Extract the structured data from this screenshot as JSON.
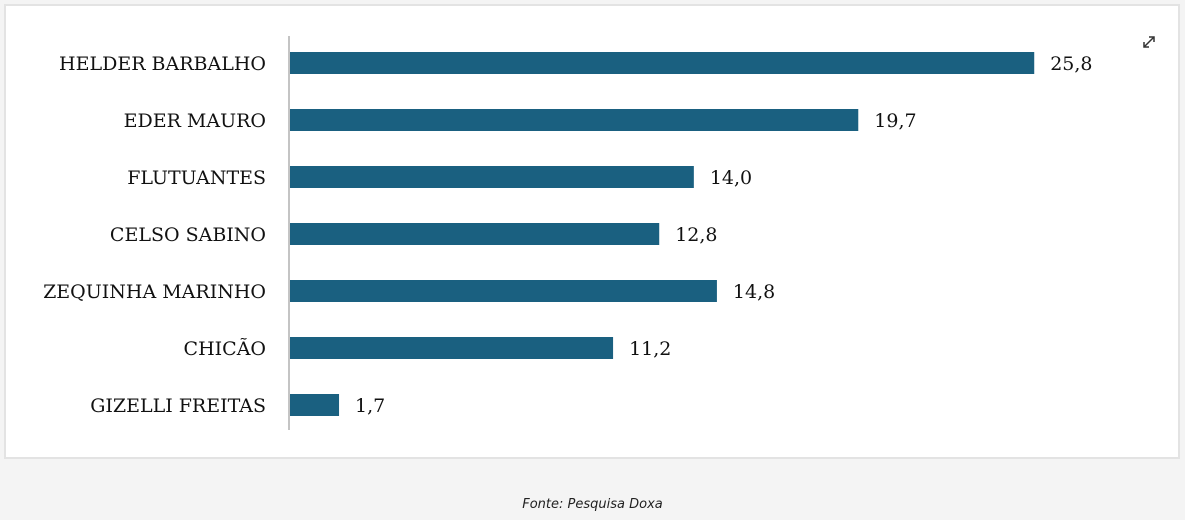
{
  "chart_data": {
    "type": "bar",
    "orientation": "horizontal",
    "categories": [
      "HELDER BARBALHO",
      "EDER MAURO",
      "FLUTUANTES",
      "CELSO SABINO",
      "ZEQUINHA MARINHO",
      "CHICÃO",
      "GIZELLI FREITAS"
    ],
    "values": [
      25.8,
      19.7,
      14.0,
      12.8,
      14.8,
      11.2,
      1.7
    ],
    "value_labels": [
      "25,8",
      "19,7",
      "14,0",
      "12,8",
      "14,8",
      "11,2",
      "1,7"
    ],
    "title": "",
    "xlabel": "",
    "ylabel": "",
    "xlim": [
      0,
      26
    ],
    "grid": false,
    "legend": "none",
    "bar_color": "#1a6080"
  },
  "caption": "Fonte: Pesquisa Doxa",
  "icons": {
    "expand": "expand-icon"
  },
  "colors": {
    "bar": "#1a6080",
    "axis": "#b0b0b0",
    "background": "#f4f4f4",
    "panel": "#ffffff"
  }
}
